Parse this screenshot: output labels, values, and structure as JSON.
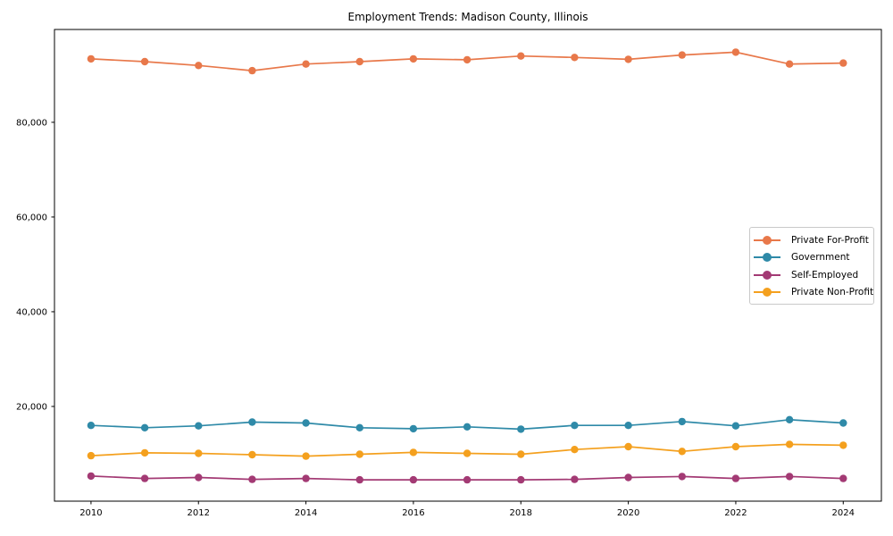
{
  "chart_data": {
    "type": "line",
    "title": "Employment Trends: Madison County, Illinois",
    "xlabel": "",
    "ylabel": "",
    "grid": false,
    "legend_position": "right",
    "xlim": [
      2009.32,
      2024.71
    ],
    "ylim": [
      0,
      99600
    ],
    "x": [
      2010,
      2011,
      2012,
      2013,
      2014,
      2015,
      2016,
      2017,
      2018,
      2019,
      2020,
      2021,
      2022,
      2023,
      2024
    ],
    "x_ticks": {
      "values": [
        2010,
        2012,
        2014,
        2016,
        2018,
        2020,
        2022,
        2024
      ],
      "labels": [
        "2010",
        "2012",
        "2014",
        "2016",
        "2018",
        "2020",
        "2022",
        "2024"
      ]
    },
    "y_ticks": {
      "values": [
        20000,
        40000,
        60000,
        80000
      ],
      "labels": [
        "20,000",
        "40,000",
        "60,000",
        "80,000"
      ]
    },
    "series": [
      {
        "name": "Private For-Profit",
        "color": "#e8784a",
        "values": [
          93400,
          92800,
          92000,
          90900,
          92300,
          92800,
          93400,
          93200,
          94000,
          93700,
          93300,
          94200,
          94800,
          92300,
          92500
        ]
      },
      {
        "name": "Government",
        "color": "#2f8aa8",
        "values": [
          16000,
          15500,
          15900,
          16700,
          16500,
          15500,
          15300,
          15700,
          15200,
          16000,
          16000,
          16800,
          15900,
          17200,
          16500
        ]
      },
      {
        "name": "Self-Employed",
        "color": "#a33a74",
        "values": [
          5300,
          4800,
          5000,
          4600,
          4800,
          4500,
          4500,
          4500,
          4500,
          4600,
          5000,
          5200,
          4800,
          5200,
          4800
        ]
      },
      {
        "name": "Private Non-Profit",
        "color": "#f4a01e",
        "values": [
          9600,
          10200,
          10100,
          9800,
          9500,
          9900,
          10300,
          10100,
          9900,
          10900,
          11500,
          10500,
          11500,
          12000,
          11800
        ]
      }
    ]
  }
}
